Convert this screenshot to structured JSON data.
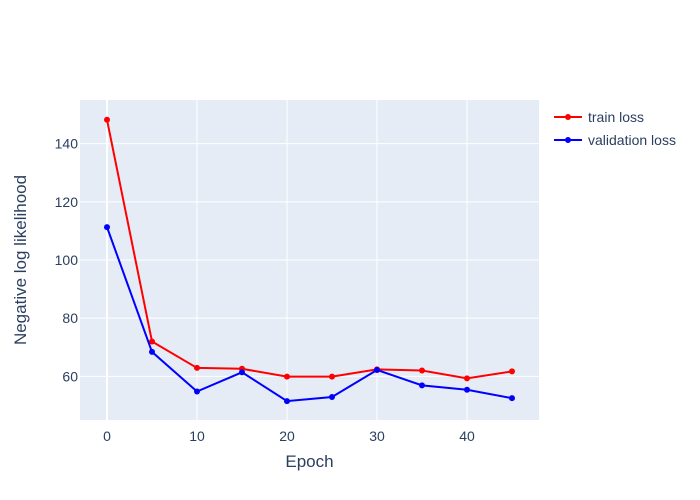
{
  "chart_data": {
    "type": "line",
    "title": "",
    "xlabel": "Epoch",
    "ylabel": "Negative log likelihood",
    "xlim": [
      -3,
      48
    ],
    "ylim": [
      45,
      155
    ],
    "x_ticks": [
      0,
      10,
      20,
      30,
      40
    ],
    "y_ticks": [
      60,
      80,
      100,
      120,
      140
    ],
    "grid": true,
    "legend_position": "top-right outside",
    "x": [
      0,
      5,
      10,
      15,
      20,
      25,
      30,
      35,
      40,
      45
    ],
    "series": [
      {
        "name": "train loss",
        "color": "#ff0000",
        "values": [
          148.2,
          72.0,
          62.9,
          62.6,
          59.9,
          59.9,
          62.4,
          62.0,
          59.3,
          61.7
        ]
      },
      {
        "name": "validation loss",
        "color": "#0000ff",
        "values": [
          111.3,
          68.4,
          54.8,
          61.4,
          51.5,
          52.9,
          62.2,
          56.9,
          55.4,
          52.5
        ]
      }
    ],
    "plot_background": "#e5ecf6",
    "grid_color": "#ffffff",
    "text_color": "#2a3f5f"
  }
}
